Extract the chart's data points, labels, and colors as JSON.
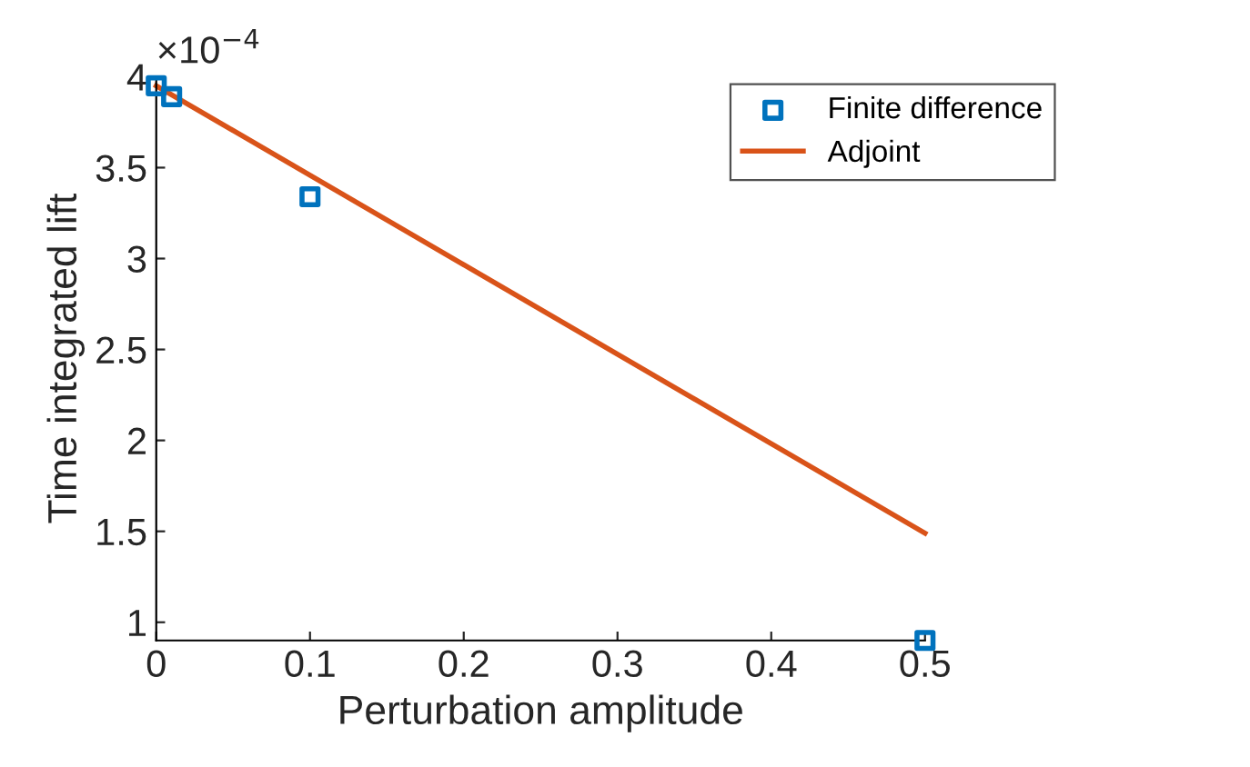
{
  "chart_data": {
    "type": "scatter",
    "xlabel": "Perturbation amplitude",
    "ylabel": "Time integrated lift",
    "annotations": [
      "×10$^{−4}$"
    ],
    "series": [
      {
        "name": "Finite difference",
        "marker": "square",
        "color": "#0072bd",
        "x": [
          0,
          0.01,
          0.1,
          0.5
        ],
        "values": [
          3.95,
          3.89,
          3.34,
          0.9
        ]
      },
      {
        "name": "Adjoint",
        "type": "line",
        "marker": "none",
        "line_style": "solid",
        "color": "#d95319",
        "x": [
          0,
          0.5
        ],
        "values": [
          3.95,
          1.49
        ]
      }
    ],
    "xlim": [
      0,
      0.5
    ],
    "xticks": [
      0,
      0.1,
      0.2,
      0.3,
      0.4,
      0.5
    ],
    "ylim": [
      0.9,
      4
    ],
    "yticks": [
      1,
      1.5,
      2,
      2.5,
      3,
      3.5,
      4
    ],
    "grid": false,
    "legend": "top right"
  }
}
